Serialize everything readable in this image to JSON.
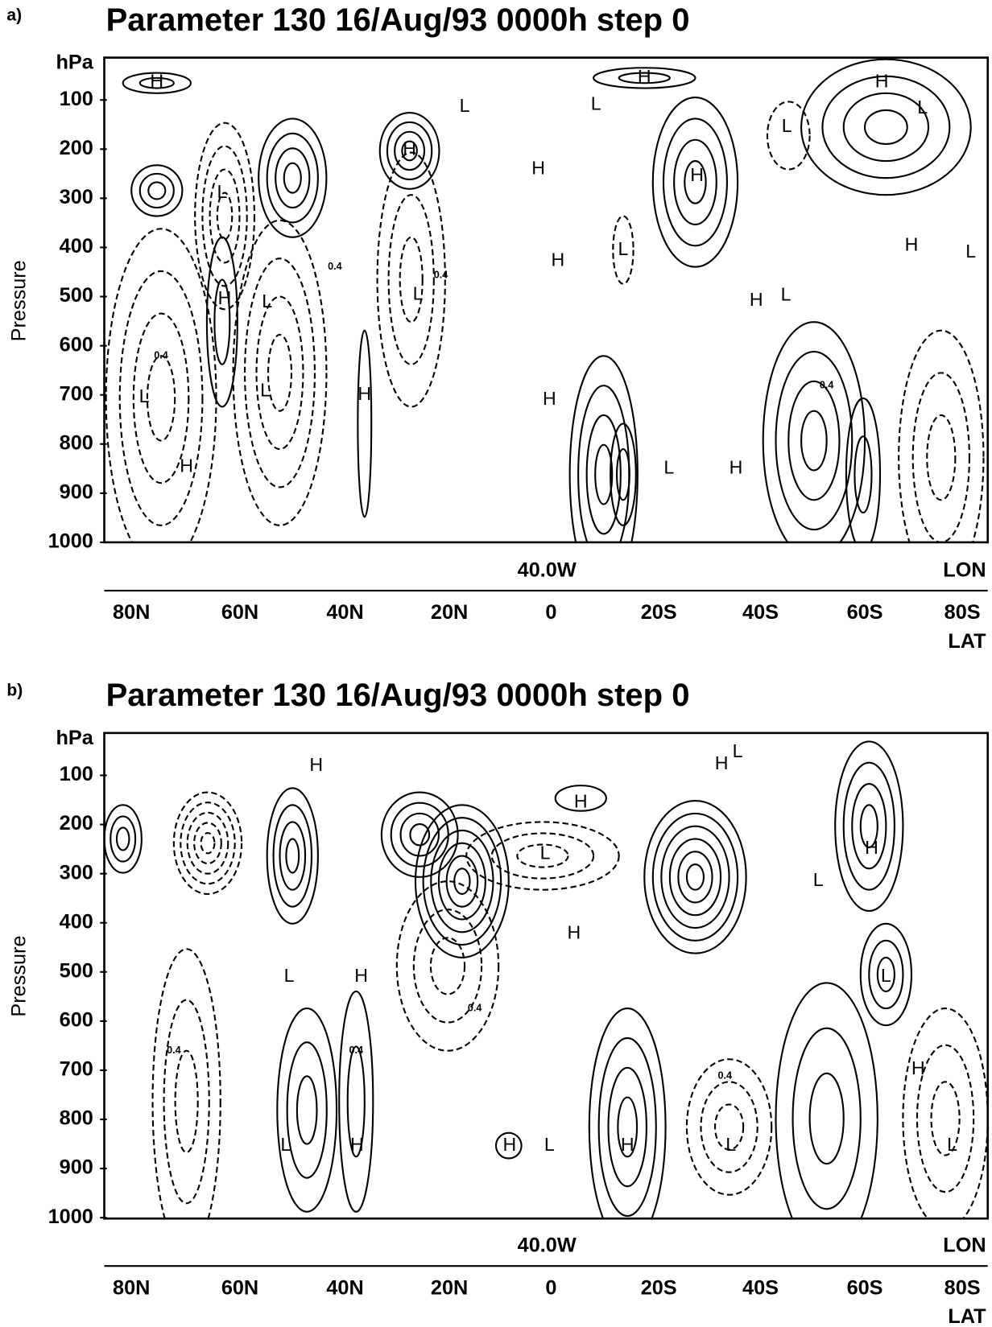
{
  "panels": [
    {
      "label": "a)",
      "title": "Parameter 130 16/Aug/93 0000h step 0",
      "y_unit": "hPa",
      "y_axis_label": "Pressure",
      "y_ticks": [
        "100",
        "200",
        "300",
        "400",
        "500",
        "600",
        "700",
        "800",
        "900",
        "1000"
      ],
      "center_label": "40.0W",
      "lon_label": "LON",
      "x_ticks": [
        "80N",
        "60N",
        "40N",
        "20N",
        "0",
        "20S",
        "40S",
        "60S",
        "80S"
      ],
      "lat_label": "LAT",
      "annotations": [
        "H",
        "H",
        "H",
        "L",
        "L",
        "L",
        "L",
        "H",
        "H",
        "H",
        "L",
        "H",
        "L",
        "H",
        "L",
        "H",
        "L",
        "L",
        "H",
        "L",
        "L",
        "H",
        "L",
        "H",
        "H",
        "L",
        "H",
        "0.4",
        "0.4",
        "0.4",
        "0.4"
      ]
    },
    {
      "label": "b)",
      "title": "Parameter 130 16/Aug/93 0000h step 0",
      "y_unit": "hPa",
      "y_axis_label": "Pressure",
      "y_ticks": [
        "100",
        "200",
        "300",
        "400",
        "500",
        "600",
        "700",
        "800",
        "900",
        "1000"
      ],
      "center_label": "40.0W",
      "lon_label": "LON",
      "x_ticks": [
        "80N",
        "60N",
        "40N",
        "20N",
        "0",
        "20S",
        "40S",
        "60S",
        "80S"
      ],
      "lat_label": "LAT",
      "annotations": [
        "H",
        "H",
        "L",
        "H",
        "L",
        "L",
        "H",
        "H",
        "L",
        "H",
        "L",
        "H",
        "L",
        "H",
        "H",
        "L",
        "H",
        "L",
        "L",
        "0.4",
        "0.4",
        "0.4",
        "0.4"
      ]
    }
  ]
}
